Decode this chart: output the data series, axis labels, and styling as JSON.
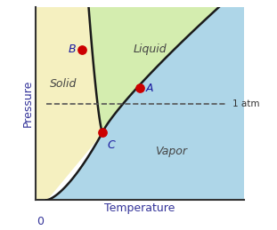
{
  "title": "",
  "xlabel": "Temperature",
  "ylabel": "Pressure",
  "label_0": "0",
  "label_1atm": "1 atm",
  "region_solid": "Solid",
  "region_liquid": "Liquid",
  "region_vapor": "Vapor",
  "point_A": "A",
  "point_B": "B",
  "point_C": "C",
  "color_solid": "#f5f0c0",
  "color_liquid": "#d4edaf",
  "color_vapor": "#aed6e8",
  "color_boundary": "#1a1a1a",
  "color_dashed": "#555555",
  "color_dot": "#cc0000",
  "xlim": [
    0,
    10
  ],
  "ylim": [
    0,
    10
  ],
  "atm_y": 5.0,
  "triple_x": 3.2,
  "triple_y": 3.5,
  "point_B_x": 2.2,
  "point_B_y": 7.8,
  "point_A_x": 5.0,
  "point_A_y": 5.8
}
